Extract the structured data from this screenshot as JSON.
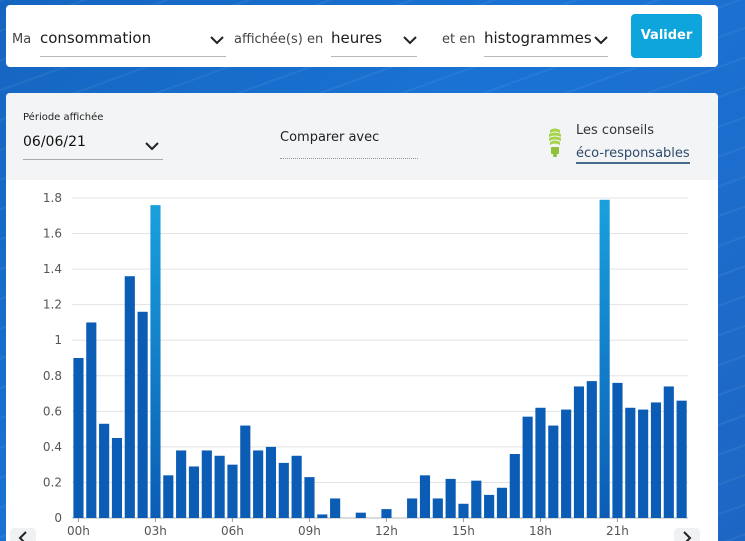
{
  "filter_bar": {
    "prefix": "Ma",
    "metric_value": "consommation",
    "middle_text": "affichée(s) en",
    "unit_value": "heures",
    "type_text": "et en",
    "chart_type_value": "histogrammes",
    "submit_label": "Valider"
  },
  "card": {
    "periode_label": "Période affichée",
    "periode_value": "06/06/21",
    "comparer_label": "Comparer avec",
    "conseils_line1": "Les conseils",
    "conseils_link": "éco-responsables"
  },
  "colors": {
    "accent": "#0ea5dd",
    "bar_dark": "#0b5cb5",
    "bar_light": "#1aa0dd"
  },
  "chart_data": {
    "type": "bar",
    "title": "",
    "xlabel": "",
    "ylabel": "",
    "ylim": [
      0,
      1.8
    ],
    "yticks": [
      "0",
      "0.2",
      "0.4",
      "0.6",
      "0.8",
      "1",
      "1.2",
      "1.4",
      "1.6",
      "1.8"
    ],
    "xtick_labels": [
      "00h",
      "03h",
      "06h",
      "09h",
      "12h",
      "15h",
      "18h",
      "21h"
    ],
    "grid": true,
    "values": [
      0.9,
      1.1,
      0.53,
      0.45,
      1.36,
      1.16,
      1.76,
      0.24,
      0.38,
      0.29,
      0.38,
      0.35,
      0.3,
      0.52,
      0.38,
      0.4,
      0.31,
      0.35,
      0.23,
      0.02,
      0.11,
      0.0,
      0.03,
      0.0,
      0.05,
      0.0,
      0.11,
      0.24,
      0.11,
      0.22,
      0.08,
      0.21,
      0.13,
      0.17,
      0.36,
      0.57,
      0.62,
      0.52,
      0.61,
      0.74,
      0.77,
      1.79,
      0.76,
      0.62,
      0.61,
      0.65,
      0.74,
      0.66
    ],
    "highlighted": [
      6,
      41
    ]
  }
}
